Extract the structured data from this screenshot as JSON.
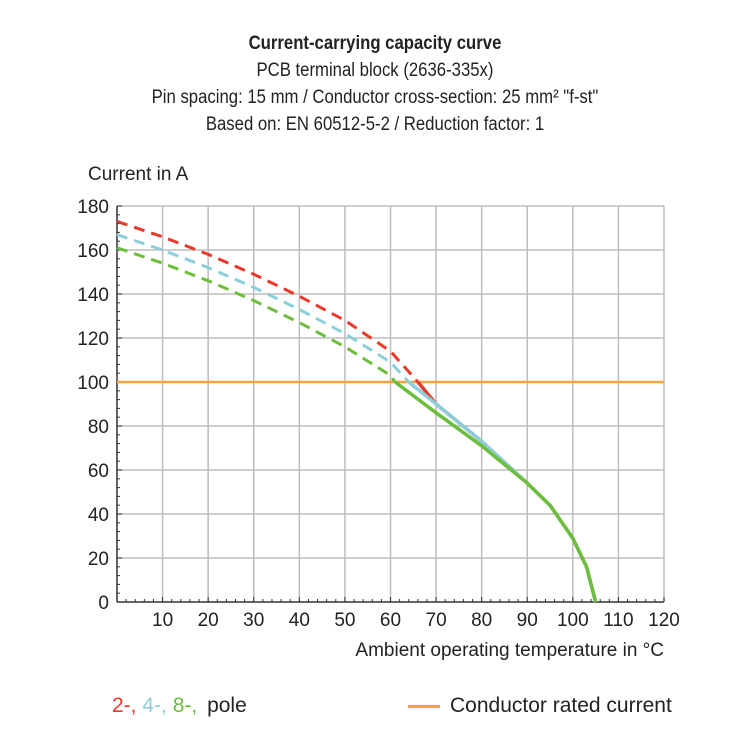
{
  "chart_data": {
    "type": "line",
    "title": "Current-carrying capacity curve",
    "subtitles": [
      "PCB terminal block (2636-335x)",
      "Pin spacing: 15 mm / Conductor cross-section: 25 mm² \"f-st\"",
      "Based on: EN 60512-5-2 / Reduction factor: 1"
    ],
    "ylabel": "Current in A",
    "xlabel": "Ambient operating temperature in °C",
    "xlim": [
      0,
      120
    ],
    "ylim": [
      0,
      180
    ],
    "xticks": [
      10,
      20,
      30,
      40,
      50,
      60,
      70,
      80,
      90,
      100,
      110,
      120
    ],
    "yticks": [
      0,
      20,
      40,
      60,
      80,
      100,
      120,
      140,
      160,
      180
    ],
    "grid": true,
    "series": [
      {
        "name": "2-",
        "color": "#e8392a",
        "x": [
          0,
          10,
          20,
          30,
          40,
          50,
          60,
          66,
          70,
          80,
          90,
          95,
          100,
          103,
          104,
          105
        ],
        "y": [
          173,
          166,
          158,
          149,
          139,
          128,
          114,
          100,
          90,
          73,
          54,
          44,
          29,
          16,
          8,
          0
        ]
      },
      {
        "name": "4-",
        "color": "#8ccfdb",
        "x": [
          0,
          10,
          20,
          30,
          40,
          50,
          60,
          64,
          70,
          80,
          90,
          95,
          100,
          103,
          104,
          105
        ],
        "y": [
          167,
          160,
          152,
          143,
          133,
          122,
          109,
          100,
          90,
          73,
          54,
          44,
          29,
          16,
          8,
          0
        ]
      },
      {
        "name": "8-",
        "color": "#6cbf3c",
        "x": [
          0,
          10,
          20,
          30,
          40,
          50,
          60,
          61,
          70,
          80,
          90,
          95,
          100,
          103,
          104,
          105
        ],
        "y": [
          161,
          154,
          146,
          137,
          127,
          116,
          103,
          100,
          86,
          71,
          54,
          44,
          29,
          16,
          8,
          0
        ]
      }
    ],
    "rated_current": {
      "name": "Conductor rated current",
      "value": 100,
      "color": "#f7a23c"
    },
    "dashed_above_rated": true
  },
  "legend": {
    "poles": [
      "2-,",
      "4-,",
      "8-,"
    ],
    "pole_suffix": "pole",
    "rated": "Conductor rated current"
  }
}
